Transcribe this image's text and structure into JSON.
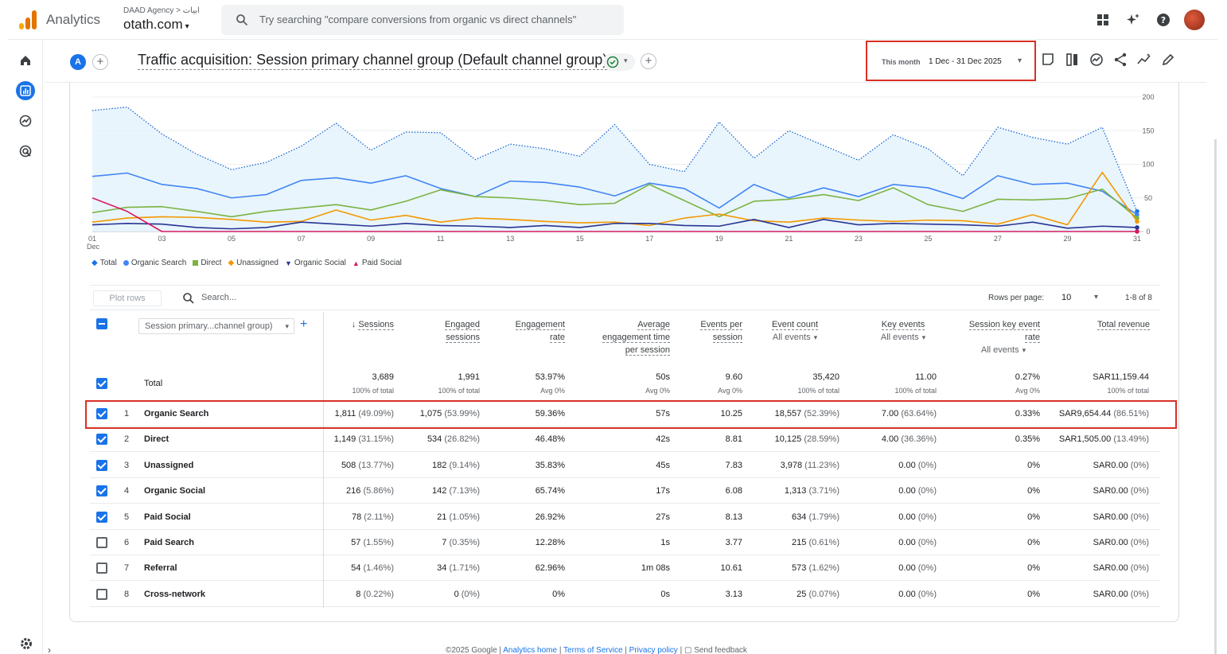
{
  "topbar": {
    "app_name": "Analytics",
    "account_crumb": "DAAD Agency > ابيات",
    "property": "otath.com",
    "search_placeholder": "Try searching \"compare conversions from organic vs direct channels\""
  },
  "report": {
    "segment_letter": "A",
    "title": "Traffic acquisition: Session primary channel group (Default channel group)",
    "date_label": "This month",
    "date_value": "1 Dec - 31 Dec 2025"
  },
  "chart_data": {
    "type": "line",
    "x": [
      "01",
      "02",
      "03",
      "04",
      "05",
      "06",
      "07",
      "08",
      "09",
      "10",
      "11",
      "12",
      "13",
      "14",
      "15",
      "16",
      "17",
      "18",
      "19",
      "20",
      "21",
      "22",
      "23",
      "24",
      "25",
      "26",
      "27",
      "28",
      "29",
      "30",
      "31"
    ],
    "x_tick_labels": [
      "01",
      "03",
      "05",
      "07",
      "09",
      "11",
      "13",
      "15",
      "17",
      "19",
      "21",
      "23",
      "25",
      "27",
      "29",
      "31"
    ],
    "x_first_sub": "Dec",
    "y_ticks": [
      0,
      50,
      100,
      150,
      200
    ],
    "ylim": [
      0,
      200
    ],
    "series": [
      {
        "name": "Total",
        "color": "#1a73e8",
        "style": "dotted-area",
        "values": [
          180,
          185,
          145,
          115,
          92,
          103,
          127,
          161,
          121,
          148,
          147,
          107,
          130,
          123,
          112,
          159,
          100,
          89,
          163,
          109,
          150,
          128,
          106,
          144,
          123,
          83,
          155,
          140,
          130,
          155,
          30
        ]
      },
      {
        "name": "Organic Search",
        "color": "#4285f4",
        "values": [
          82,
          87,
          70,
          64,
          50,
          55,
          76,
          80,
          72,
          83,
          64,
          52,
          75,
          73,
          66,
          53,
          72,
          64,
          35,
          70,
          50,
          65,
          52,
          70,
          65,
          49,
          83,
          70,
          72,
          60,
          25
        ]
      },
      {
        "name": "Direct",
        "color": "#7cb342",
        "values": [
          28,
          36,
          37,
          30,
          22,
          30,
          35,
          40,
          32,
          45,
          62,
          52,
          50,
          46,
          40,
          42,
          70,
          46,
          22,
          45,
          48,
          55,
          46,
          65,
          40,
          30,
          48,
          47,
          49,
          63,
          20
        ]
      },
      {
        "name": "Unassigned",
        "color": "#f29900",
        "values": [
          14,
          20,
          22,
          21,
          18,
          14,
          15,
          32,
          17,
          24,
          14,
          20,
          18,
          15,
          13,
          14,
          9,
          20,
          26,
          16,
          14,
          20,
          17,
          15,
          17,
          16,
          11,
          25,
          10,
          88,
          15
        ]
      },
      {
        "name": "Organic Social",
        "color": "#283593",
        "values": [
          10,
          12,
          11,
          6,
          4,
          6,
          14,
          11,
          8,
          12,
          9,
          8,
          6,
          9,
          6,
          12,
          12,
          9,
          8,
          18,
          6,
          18,
          10,
          12,
          11,
          10,
          8,
          14,
          5,
          8,
          6
        ]
      },
      {
        "name": "Paid Social",
        "color": "#d81b60",
        "values": [
          50,
          30,
          0,
          0,
          0,
          0,
          0,
          0,
          0,
          0,
          0,
          0,
          0,
          0,
          0,
          0,
          0,
          0,
          0,
          0,
          0,
          0,
          0,
          0,
          0,
          0,
          0,
          0,
          0,
          0,
          0
        ]
      }
    ]
  },
  "table": {
    "plot_rows": "Plot rows",
    "search_placeholder": "Search...",
    "rows_per_page_label": "Rows per page:",
    "rows_per_page": "10",
    "paging": "1-8 of 8",
    "dimension": "Session primary...channel group)",
    "headers": {
      "sessions": "Sessions",
      "engaged_1": "Engaged",
      "engaged_2": "sessions",
      "engagement_1": "Engagement",
      "engagement_2": "rate",
      "avgtime_1": "Average",
      "avgtime_2": "engagement time",
      "avgtime_3": "per session",
      "eps_1": "Events per",
      "eps_2": "session",
      "event_count": "Event count",
      "event_count_sub": "All events",
      "key_events": "Key events",
      "key_events_sub": "All events",
      "skr_1": "Session key event",
      "skr_2": "rate",
      "skr_sub": "All events",
      "revenue": "Total revenue"
    },
    "total": {
      "label": "Total",
      "sessions": "3,689",
      "sessions_sub": "100% of total",
      "engaged": "1,991",
      "engaged_sub": "100% of total",
      "rate": "53.97%",
      "rate_sub": "Avg 0%",
      "avgtime": "50s",
      "avgtime_sub": "Avg 0%",
      "eps": "9.60",
      "eps_sub": "Avg 0%",
      "events": "35,420",
      "events_sub": "100% of total",
      "keyev": "11.00",
      "keyev_sub": "100% of total",
      "skr": "0.27%",
      "skr_sub": "Avg 0%",
      "revenue": "SAR11,159.44",
      "revenue_sub": "100% of total"
    },
    "rows": [
      {
        "idx": "1",
        "name": "Organic Search",
        "sessions": "1,811",
        "sessions_pct": "(49.09%)",
        "engaged": "1,075",
        "engaged_pct": "(53.99%)",
        "rate": "59.36%",
        "avgtime": "57s",
        "eps": "10.25",
        "events": "18,557",
        "events_pct": "(52.39%)",
        "keyev": "7.00",
        "keyev_pct": "(63.64%)",
        "skr": "0.33%",
        "revenue": "SAR9,654.44",
        "revenue_pct": "(86.51%)"
      },
      {
        "idx": "2",
        "name": "Direct",
        "sessions": "1,149",
        "sessions_pct": "(31.15%)",
        "engaged": "534",
        "engaged_pct": "(26.82%)",
        "rate": "46.48%",
        "avgtime": "42s",
        "eps": "8.81",
        "events": "10,125",
        "events_pct": "(28.59%)",
        "keyev": "4.00",
        "keyev_pct": "(36.36%)",
        "skr": "0.35%",
        "revenue": "SAR1,505.00",
        "revenue_pct": "(13.49%)"
      },
      {
        "idx": "3",
        "name": "Unassigned",
        "sessions": "508",
        "sessions_pct": "(13.77%)",
        "engaged": "182",
        "engaged_pct": "(9.14%)",
        "rate": "35.83%",
        "avgtime": "45s",
        "eps": "7.83",
        "events": "3,978",
        "events_pct": "(11.23%)",
        "keyev": "0.00",
        "keyev_pct": "(0%)",
        "skr": "0%",
        "revenue": "SAR0.00",
        "revenue_pct": "(0%)"
      },
      {
        "idx": "4",
        "name": "Organic Social",
        "sessions": "216",
        "sessions_pct": "(5.86%)",
        "engaged": "142",
        "engaged_pct": "(7.13%)",
        "rate": "65.74%",
        "avgtime": "17s",
        "eps": "6.08",
        "events": "1,313",
        "events_pct": "(3.71%)",
        "keyev": "0.00",
        "keyev_pct": "(0%)",
        "skr": "0%",
        "revenue": "SAR0.00",
        "revenue_pct": "(0%)"
      },
      {
        "idx": "5",
        "name": "Paid Social",
        "sessions": "78",
        "sessions_pct": "(2.11%)",
        "engaged": "21",
        "engaged_pct": "(1.05%)",
        "rate": "26.92%",
        "avgtime": "27s",
        "eps": "8.13",
        "events": "634",
        "events_pct": "(1.79%)",
        "keyev": "0.00",
        "keyev_pct": "(0%)",
        "skr": "0%",
        "revenue": "SAR0.00",
        "revenue_pct": "(0%)"
      },
      {
        "idx": "6",
        "name": "Paid Search",
        "sessions": "57",
        "sessions_pct": "(1.55%)",
        "engaged": "7",
        "engaged_pct": "(0.35%)",
        "rate": "12.28%",
        "avgtime": "1s",
        "eps": "3.77",
        "events": "215",
        "events_pct": "(0.61%)",
        "keyev": "0.00",
        "keyev_pct": "(0%)",
        "skr": "0%",
        "revenue": "SAR0.00",
        "revenue_pct": "(0%)"
      },
      {
        "idx": "7",
        "name": "Referral",
        "sessions": "54",
        "sessions_pct": "(1.46%)",
        "engaged": "34",
        "engaged_pct": "(1.71%)",
        "rate": "62.96%",
        "avgtime": "1m 08s",
        "eps": "10.61",
        "events": "573",
        "events_pct": "(1.62%)",
        "keyev": "0.00",
        "keyev_pct": "(0%)",
        "skr": "0%",
        "revenue": "SAR0.00",
        "revenue_pct": "(0%)"
      },
      {
        "idx": "8",
        "name": "Cross-network",
        "sessions": "8",
        "sessions_pct": "(0.22%)",
        "engaged": "0",
        "engaged_pct": "(0%)",
        "rate": "0%",
        "avgtime": "0s",
        "eps": "3.13",
        "events": "25",
        "events_pct": "(0.07%)",
        "keyev": "0.00",
        "keyev_pct": "(0%)",
        "skr": "0%",
        "revenue": "SAR0.00",
        "revenue_pct": "(0%)"
      }
    ],
    "checked": [
      true,
      true,
      true,
      true,
      true,
      false,
      false,
      false
    ]
  },
  "footer": {
    "copyright": "©2025 Google |",
    "home": "Analytics home",
    "terms": "Terms of Service",
    "privacy": "Privacy policy",
    "feedback": "Send feedback"
  }
}
